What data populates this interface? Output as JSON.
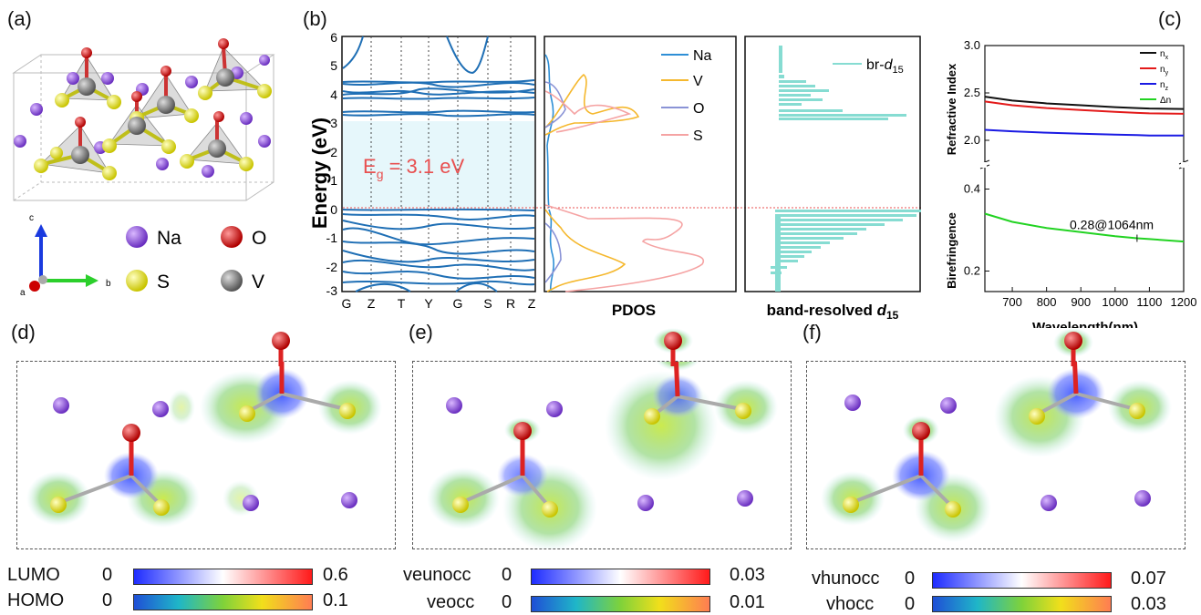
{
  "panels": {
    "a": "(a)",
    "b": "(b)",
    "c": "(c)",
    "d": "(d)",
    "e": "(e)",
    "f": "(f)"
  },
  "structure_legend": {
    "axes": {
      "c": "c",
      "b": "b",
      "a": "a"
    },
    "atoms": [
      {
        "label": "Na",
        "color": "#8a4fd6"
      },
      {
        "label": "O",
        "color": "#d11a1a"
      },
      {
        "label": "S",
        "color": "#f2f21a"
      },
      {
        "label": "V",
        "color": "#8c8c8c"
      }
    ]
  },
  "band_panel": {
    "ylabel": "Energy (eV)",
    "yticks": [
      "6",
      "5",
      "4",
      "3",
      "2",
      "1",
      "0",
      "-1",
      "-2",
      "-3"
    ],
    "kpoints": [
      "G",
      "Z",
      "T",
      "Y",
      "G",
      "S",
      "R",
      "Z"
    ],
    "gap_label": "E",
    "gap_sub": "g",
    "gap_value": " = 3.1 eV",
    "pdos_xlabel": "PDOS",
    "pdos_legend": [
      {
        "label": "Na",
        "color": "#2e8fd6"
      },
      {
        "label": "V",
        "color": "#f5b82e"
      },
      {
        "label": "O",
        "color": "#8a93d6"
      },
      {
        "label": "S",
        "color": "#f5a3a3"
      }
    ],
    "d15_xlabel": "band-resolved ",
    "d15_xlabel_it": "d",
    "d15_xlabel_sub": "15",
    "d15_legend": "br-",
    "d15_legend_it": "d",
    "d15_legend_sub": "15"
  },
  "chart_data": [
    {
      "type": "line",
      "title": "",
      "xlabel": "Wavelength(nm)",
      "ylabel": "Refractive Index",
      "x": [
        620,
        700,
        800,
        900,
        1000,
        1064,
        1100,
        1200
      ],
      "xticks": [
        "700",
        "800",
        "900",
        "1000",
        "1100",
        "1200"
      ],
      "yticks": [
        "3.0",
        "2.5",
        "2.0"
      ],
      "ylim": [
        1.75,
        3.0
      ],
      "series": [
        {
          "name": "n",
          "sub": "x",
          "color": "#111111",
          "values": [
            2.46,
            2.42,
            2.39,
            2.37,
            2.35,
            2.34,
            2.335,
            2.33
          ]
        },
        {
          "name": "n",
          "sub": "y",
          "color": "#e31a1a",
          "values": [
            2.41,
            2.37,
            2.34,
            2.32,
            2.3,
            2.29,
            2.285,
            2.28
          ]
        },
        {
          "name": "n",
          "sub": "z",
          "color": "#1a1ae3",
          "values": [
            2.11,
            2.095,
            2.08,
            2.07,
            2.06,
            2.055,
            2.05,
            2.05
          ]
        }
      ]
    },
    {
      "type": "line",
      "title": "",
      "xlabel": "Wavelength(nm)",
      "ylabel": "Birefringence",
      "x": [
        620,
        700,
        800,
        900,
        1000,
        1064,
        1100,
        1200
      ],
      "yticks": [
        "0.4",
        "0.2"
      ],
      "ylim": [
        0.15,
        0.45
      ],
      "annotation": "0.28@1064nm",
      "series": [
        {
          "name": "Δn",
          "sub": "",
          "color": "#22d322",
          "values": [
            0.34,
            0.32,
            0.305,
            0.295,
            0.285,
            0.28,
            0.278,
            0.272
          ]
        }
      ]
    }
  ],
  "colorbars": {
    "d": [
      {
        "label": "LUMO",
        "min": "0",
        "max": "0.6",
        "scale": "bwr"
      },
      {
        "label": "HOMO",
        "min": "0",
        "max": "0.1",
        "scale": "jet"
      }
    ],
    "e": [
      {
        "label": "veunocc",
        "min": "0",
        "max": "0.03",
        "scale": "bwr"
      },
      {
        "label": "veocc",
        "min": "0",
        "max": "0.01",
        "scale": "jet"
      }
    ],
    "f": [
      {
        "label": "vhunocc",
        "min": "0",
        "max": "0.07",
        "scale": "bwr"
      },
      {
        "label": "vhocc",
        "min": "0",
        "max": "0.03",
        "scale": "jet"
      }
    ]
  }
}
